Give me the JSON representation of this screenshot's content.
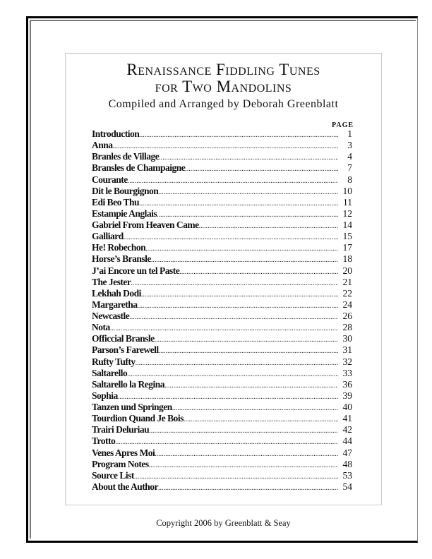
{
  "title_line1": "Renaissance Fiddling Tunes",
  "title_line2": "for Two Mandolins",
  "subtitle": "Compiled and Arranged by Deborah Greenblatt",
  "page_header": "PAGE",
  "entries": [
    {
      "name": "Introduction",
      "page": "1"
    },
    {
      "name": "Anna",
      "page": "3"
    },
    {
      "name": "Branles de Village",
      "page": "4"
    },
    {
      "name": "Bransles de Champaigne",
      "page": "7"
    },
    {
      "name": "Courante",
      "page": "8"
    },
    {
      "name": "Dit le Bourgignon",
      "page": "10"
    },
    {
      "name": "Edi Beo Thu",
      "page": "11"
    },
    {
      "name": "Estampie Anglais",
      "page": "12"
    },
    {
      "name": "Gabriel From Heaven Came",
      "page": "14"
    },
    {
      "name": "Galliard",
      "page": "15"
    },
    {
      "name": "He! Robechon",
      "page": "17"
    },
    {
      "name": "Horse’s Bransle",
      "page": "18"
    },
    {
      "name": "J’ai Encore un tel Paste",
      "page": "20"
    },
    {
      "name": "The Jester",
      "page": "21"
    },
    {
      "name": "Lekhah Dodi",
      "page": "22"
    },
    {
      "name": "Margaretha",
      "page": "24"
    },
    {
      "name": "Newcastle",
      "page": "26"
    },
    {
      "name": "Nota",
      "page": "28"
    },
    {
      "name": "Officcial Bransle",
      "page": "30"
    },
    {
      "name": "Parson’s Farewell",
      "page": "31"
    },
    {
      "name": "Rufty Tufty",
      "page": "32"
    },
    {
      "name": "Saltarello",
      "page": "33"
    },
    {
      "name": "Saltarello la Regina",
      "page": "36"
    },
    {
      "name": "Sophia",
      "page": "39"
    },
    {
      "name": "Tanzen und Springen",
      "page": "40"
    },
    {
      "name": "Tourdion Quand Je Bois",
      "page": "41"
    },
    {
      "name": "Trairi Deluriau",
      "page": "42"
    },
    {
      "name": "Trotto",
      "page": "44"
    },
    {
      "name": "Venes Apres Moi",
      "page": "47"
    },
    {
      "name": "Program Notes",
      "page": "48"
    },
    {
      "name": "Source List",
      "page": "53"
    },
    {
      "name": "About the Author",
      "page": "54"
    }
  ],
  "copyright": "Copyright 2006 by Greenblatt & Seay"
}
